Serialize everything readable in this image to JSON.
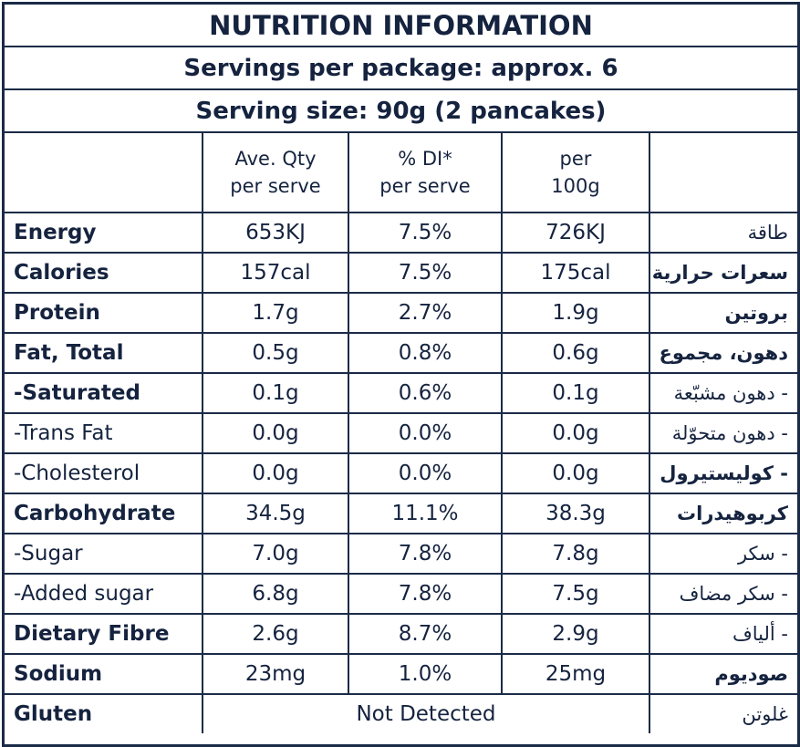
{
  "title": "NUTRITION INFORMATION",
  "servings_per_package": "Servings per package: approx. 6",
  "serving_size": "Serving size: 90g (2 pancakes)",
  "headers": {
    "blank": "",
    "ave_qty_line1": "Ave. Qty",
    "ave_qty_line2": "per serve",
    "di_line1": "% DI*",
    "di_line2": "per serve",
    "per100_line1": "per",
    "per100_line2": "100g",
    "arabic": ""
  },
  "rows": [
    {
      "name": "Energy",
      "serve": "653KJ",
      "di": "7.5%",
      "per100": "726KJ",
      "arabic": "طاقة",
      "bold": true,
      "arabic_bold": false
    },
    {
      "name": "Calories",
      "serve": "157cal",
      "di": "7.5%",
      "per100": "175cal",
      "arabic": "سعرات حرارية",
      "bold": true,
      "arabic_bold": true
    },
    {
      "name": "Protein",
      "serve": "1.7g",
      "di": "2.7%",
      "per100": "1.9g",
      "arabic": "بروتين",
      "bold": true,
      "arabic_bold": true
    },
    {
      "name": "Fat, Total",
      "serve": "0.5g",
      "di": "0.8%",
      "per100": "0.6g",
      "arabic": "دهون، مجموع",
      "bold": true,
      "arabic_bold": true
    },
    {
      "name": "-Saturated",
      "serve": "0.1g",
      "di": "0.6%",
      "per100": "0.1g",
      "arabic": "- دهون مشبّعة",
      "bold": true,
      "arabic_bold": false
    },
    {
      "name": "-Trans Fat",
      "serve": "0.0g",
      "di": "0.0%",
      "per100": "0.0g",
      "arabic": "- دهون متحوّلة",
      "bold": false,
      "arabic_bold": false
    },
    {
      "name": "-Cholesterol",
      "serve": "0.0g",
      "di": "0.0%",
      "per100": "0.0g",
      "arabic": "- كوليستيرول",
      "bold": false,
      "arabic_bold": true
    },
    {
      "name": "Carbohydrate",
      "serve": "34.5g",
      "di": "11.1%",
      "per100": "38.3g",
      "arabic": "كربوهيدرات",
      "bold": true,
      "arabic_bold": true
    },
    {
      "name": "-Sugar",
      "serve": "7.0g",
      "di": "7.8%",
      "per100": "7.8g",
      "arabic": "- سكر",
      "bold": false,
      "arabic_bold": false
    },
    {
      "name": "-Added sugar",
      "serve": "6.8g",
      "di": "7.8%",
      "per100": "7.5g",
      "arabic": "- سكر مضاف",
      "bold": false,
      "arabic_bold": false
    },
    {
      "name": "Dietary Fibre",
      "serve": "2.6g",
      "di": "8.7%",
      "per100": "2.9g",
      "arabic": "- ألياف",
      "bold": true,
      "arabic_bold": false
    },
    {
      "name": "Sodium",
      "serve": "23mg",
      "di": "1.0%",
      "per100": "25mg",
      "arabic": "صوديوم",
      "bold": true,
      "arabic_bold": true
    }
  ],
  "gluten": {
    "name": "Gluten",
    "value": "Not Detected",
    "arabic": "غلوتن"
  }
}
